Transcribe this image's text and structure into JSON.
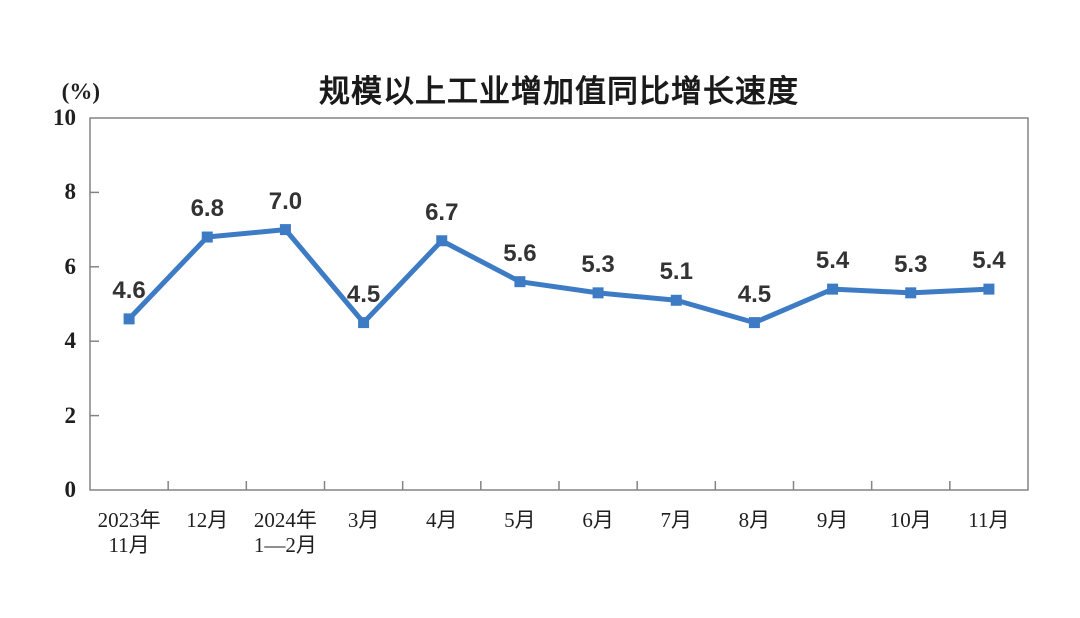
{
  "figure": {
    "background": "#ffffff"
  },
  "chart_data": {
    "type": "line",
    "title": "规模以上工业增加值同比增长速度",
    "ylabel": "(%)",
    "xlabel": "",
    "categories": [
      [
        "2023年",
        "11月"
      ],
      [
        "12月"
      ],
      [
        "2024年",
        "1—2月"
      ],
      [
        "3月"
      ],
      [
        "4月"
      ],
      [
        "5月"
      ],
      [
        "6月"
      ],
      [
        "7月"
      ],
      [
        "8月"
      ],
      [
        "9月"
      ],
      [
        "10月"
      ],
      [
        "11月"
      ]
    ],
    "values": [
      4.6,
      6.8,
      7.0,
      4.5,
      6.7,
      5.6,
      5.3,
      5.1,
      4.5,
      5.4,
      5.3,
      5.4
    ],
    "value_labels": [
      "4.6",
      "6.8",
      "7.0",
      "4.5",
      "6.7",
      "5.6",
      "5.3",
      "5.1",
      "4.5",
      "5.4",
      "5.3",
      "5.4"
    ],
    "ylim": [
      0,
      10
    ],
    "yticks": [
      0,
      2,
      4,
      6,
      8,
      10
    ],
    "grid": false,
    "legend": false,
    "marker": "square",
    "colors": {
      "line": "#3d7cc4",
      "marker": "#3d7cc4",
      "axis": "#848484",
      "title_text": "#1a1a1a",
      "tick_text": "#1f1f1f",
      "data_label_text": "#333333",
      "background": "#ffffff"
    }
  }
}
